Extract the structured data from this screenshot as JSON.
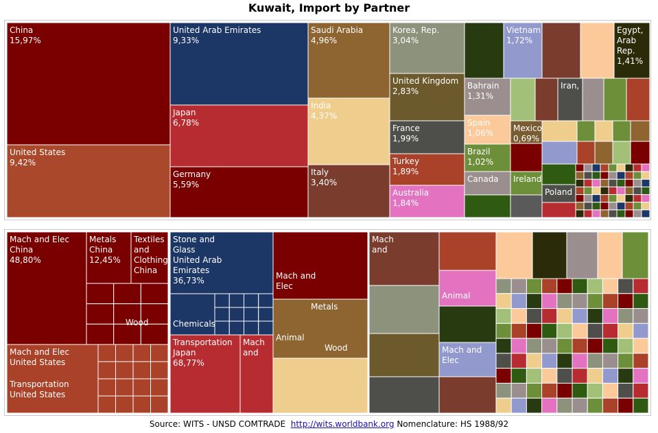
{
  "chart_data": [
    {
      "type": "treemap",
      "title": "Kuwait, Import by Partner",
      "partners": [
        {
          "name": "China",
          "share": "15,97%",
          "color": "#7a0000"
        },
        {
          "name": "United States",
          "share": "9,42%",
          "color": "#a9482a"
        },
        {
          "name": "United Arab Emirates",
          "share": "9,33%",
          "color": "#1c3766"
        },
        {
          "name": "Japan",
          "share": "6,78%",
          "color": "#b72c31"
        },
        {
          "name": "Germany",
          "share": "5,59%",
          "color": "#7a0000"
        },
        {
          "name": "Saudi Arabia",
          "share": "4,96%",
          "color": "#8e6431"
        },
        {
          "name": "India",
          "share": "4,37%",
          "color": "#efcd8c"
        },
        {
          "name": "Italy",
          "share": "3,40%",
          "color": "#7a3c2c"
        },
        {
          "name": "Korea, Rep.",
          "share": "3,04%",
          "color": "#8c927c"
        },
        {
          "name": "United Kingdom",
          "share": "2,83%",
          "color": "#6c5a2c"
        },
        {
          "name": "France",
          "share": "1,99%",
          "color": "#4e4e4a"
        },
        {
          "name": "Turkey",
          "share": "1,89%",
          "color": "#a94228"
        },
        {
          "name": "Australia",
          "share": "1,84%",
          "color": "#e373c1"
        },
        {
          "name": "Vietnam",
          "share": "1,72%",
          "color": "#9299cd"
        },
        {
          "name": "Egypt, Arab Rep.",
          "share": "1,41%",
          "color": "#2b2b09"
        },
        {
          "name": "Bahrain",
          "share": "1,31%",
          "color": "#9a8e8e"
        },
        {
          "name": "Spain",
          "share": "1,06%",
          "color": "#fbc99a"
        },
        {
          "name": "Brazil",
          "share": "1,02%",
          "color": "#6d8f3a"
        },
        {
          "name": "Mexico",
          "share": "0,69%",
          "color": "#7a5c32"
        },
        {
          "name": "Canada",
          "share": "",
          "color": "#9a8e8e"
        },
        {
          "name": "Ireland",
          "share": "",
          "color": "#6d8f3a"
        },
        {
          "name": "Iran,",
          "share": "",
          "color": "#4e4e4a"
        },
        {
          "name": "Poland",
          "share": "",
          "color": "#4e4e4a"
        }
      ]
    },
    {
      "type": "treemap",
      "title": "",
      "groups": [
        {
          "partner": "China",
          "label": "Mach and Elec China 48,80%"
        },
        {
          "partner": "China",
          "label": "Metals China 12,45%"
        },
        {
          "partner": "China",
          "label": "Textiles and Clothing China"
        },
        {
          "partner": "China",
          "label": "Wood"
        },
        {
          "partner": "United States",
          "label": "Mach and Elec United States"
        },
        {
          "partner": "United States",
          "label": "Transportation United States"
        },
        {
          "partner": "United Arab Emirates",
          "label": "Stone and Glass United Arab Emirates 36,73%"
        },
        {
          "partner": "United Arab Emirates",
          "label": "Chemicals"
        },
        {
          "partner": "Japan",
          "label": "Transportation Japan 68,77%"
        },
        {
          "partner": "Japan",
          "label": "Mach and"
        },
        {
          "partner": "Germany",
          "label": "Mach and Elec"
        },
        {
          "partner": "Saudi Arabia",
          "label": "Animal"
        },
        {
          "partner": "Saudi Arabia",
          "label": "Metals"
        },
        {
          "partner": "Saudi Arabia",
          "label": "Wood"
        },
        {
          "label": "Mach and"
        },
        {
          "label": "Animal"
        },
        {
          "label": "Mach and Elec"
        }
      ]
    }
  ],
  "top_labels": [
    {
      "l1": "China",
      "l2": "15,97%"
    },
    {
      "l1": "United States",
      "l2": "9,42%"
    },
    {
      "l1": "United Arab Emirates",
      "l2": "9,33%"
    },
    {
      "l1": "Japan",
      "l2": "6,78%"
    },
    {
      "l1": "Germany",
      "l2": "5,59%"
    },
    {
      "l1": "Saudi Arabia",
      "l2": "4,96%"
    },
    {
      "l1": "India",
      "l2": "4,37%"
    },
    {
      "l1": "Italy",
      "l2": "3,40%"
    },
    {
      "l1": "Korea, Rep.",
      "l2": "3,04%"
    },
    {
      "l1": "United Kingdom",
      "l2": "2,83%"
    },
    {
      "l1": "France",
      "l2": "1,99%"
    },
    {
      "l1": "Turkey",
      "l2": "1,89%"
    },
    {
      "l1": "Australia",
      "l2": "1,84%"
    },
    {
      "l1": "Vietnam",
      "l2": "1,72%"
    },
    {
      "l1": "Egypt,",
      "l2": "Arab",
      "l3": "Rep.",
      "l4": "1,41%"
    },
    {
      "l1": "Bahrain",
      "l2": "1,31%"
    },
    {
      "l1": "Spain",
      "l2": "1,06%"
    },
    {
      "l1": "Brazil",
      "l2": "1,02%"
    },
    {
      "l1": "Mexico",
      "l2": "0,69%"
    },
    {
      "l1": "Canada"
    },
    {
      "l1": "Ireland"
    },
    {
      "l1": "Iran,"
    },
    {
      "l1": "Poland"
    }
  ],
  "bottom_labels": [
    {
      "l1": "Mach and Elec",
      "l2": "China",
      "l3": "48,80%"
    },
    {
      "l1": "Metals",
      "l2": "China",
      "l3": "12,45%"
    },
    {
      "l1": "Textiles",
      "l2": "and",
      "l3": "Clothing",
      "l4": "China"
    },
    {
      "l1": "Wood"
    },
    {
      "l1": "Mach and Elec",
      "l2": "United States"
    },
    {
      "l1": "Transportation",
      "l2": "United States"
    },
    {
      "l1": "Stone and",
      "l2": "Glass",
      "l3": "United Arab",
      "l4": "Emirates",
      "l5": "36,73%"
    },
    {
      "l1": "Chemicals"
    },
    {
      "l1": "Transportation",
      "l2": "Japan",
      "l3": "68,77%"
    },
    {
      "l1": "Mach",
      "l2": "and"
    },
    {
      "l1": "Mach and",
      "l2": "Elec"
    },
    {
      "l1": "Metals"
    },
    {
      "l1": "Animal"
    },
    {
      "l1": "Wood"
    },
    {
      "l1": "Mach",
      "l2": "and"
    },
    {
      "l1": "Animal"
    },
    {
      "l1": "Mach and",
      "l2": "Elec"
    }
  ],
  "footer": {
    "source": "Source: WITS - UNSD COMTRADE",
    "link": "http://wits.worldbank.org",
    "nomenclature": "Nomenclature: HS 1988/92"
  }
}
